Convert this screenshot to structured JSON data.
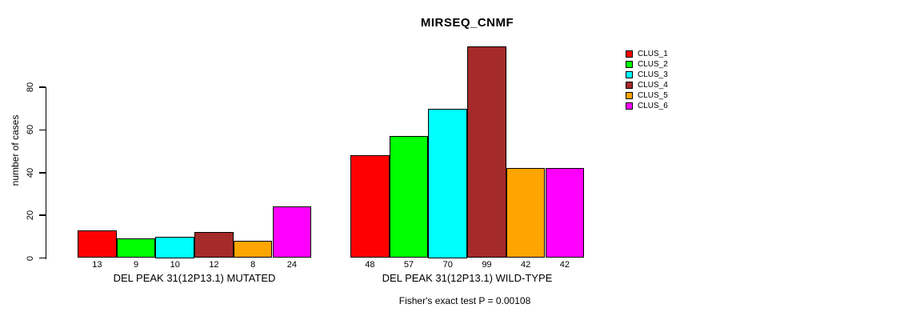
{
  "chart_data": {
    "type": "bar",
    "title": "MIRSEQ_CNMF",
    "ylabel": "number of cases",
    "xlabel": "",
    "categories": [
      "DEL PEAK 31(12P13.1) MUTATED",
      "DEL PEAK 31(12P13.1) WILD-TYPE"
    ],
    "series": [
      {
        "name": "CLUS_1",
        "color": "#FF0000",
        "values": [
          13,
          48
        ]
      },
      {
        "name": "CLUS_2",
        "color": "#00FF00",
        "values": [
          9,
          57
        ]
      },
      {
        "name": "CLUS_3",
        "color": "#00FFFF",
        "values": [
          10,
          70
        ]
      },
      {
        "name": "CLUS_4",
        "color": "#A52A2A",
        "values": [
          12,
          99
        ]
      },
      {
        "name": "CLUS_5",
        "color": "#FFA500",
        "values": [
          8,
          42
        ]
      },
      {
        "name": "CLUS_6",
        "color": "#FF00FF",
        "values": [
          24,
          42
        ]
      }
    ],
    "yticks": [
      0,
      20,
      40,
      60,
      80
    ],
    "axis_y_max": 80,
    "grid": false,
    "bar_border_color": "#000000",
    "bar_value_labels_shown": true,
    "legend_position": "right",
    "legend_labels": [
      "CLUS_1",
      "CLUS_2",
      "CLUS_3",
      "CLUS_4",
      "CLUS_5",
      "CLUS_6"
    ],
    "annotation": "Fisher's exact test P = 0.00108"
  }
}
